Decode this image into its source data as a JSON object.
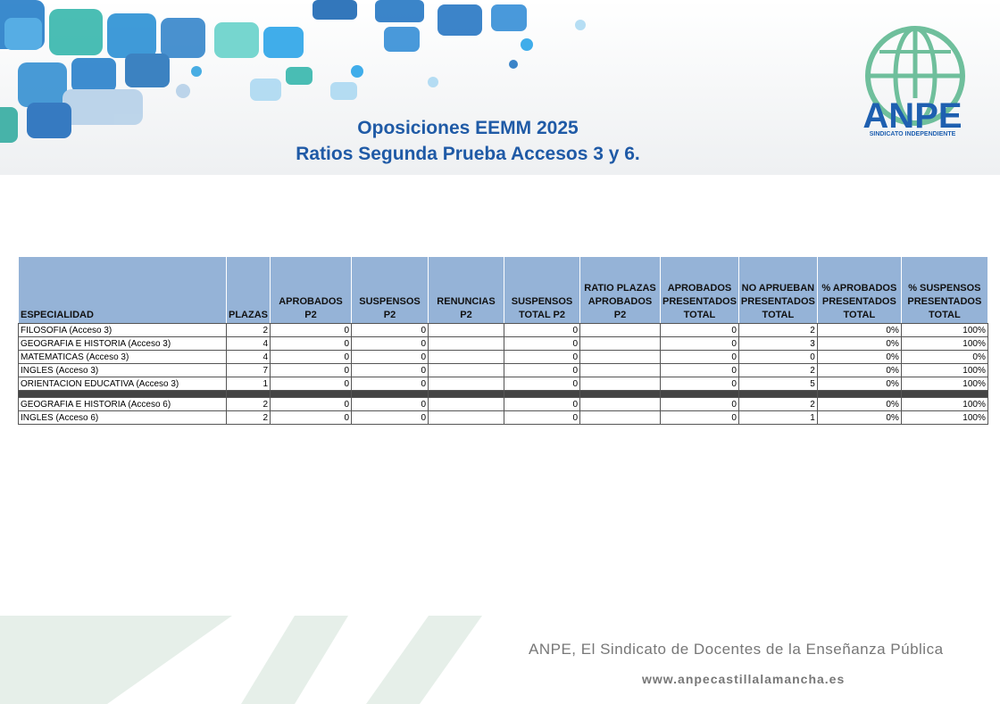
{
  "header": {
    "title": "Oposiciones EEMM 2025",
    "subtitle": "Ratios Segunda Prueba Accesos 3 y 6.",
    "logo": {
      "name": "ANPE",
      "tagline": "SINDICATO INDEPENDIENTE"
    }
  },
  "table": {
    "columns": [
      "ESPECIALIDAD",
      "PLAZAS",
      "APROBADOS P2",
      "SUSPENSOS P2",
      "RENUNCIAS P2",
      "SUSPENSOS TOTAL P2",
      "RATIO PLAZAS APROBADOS P2",
      "APROBADOS PRESENTADOS TOTAL",
      "NO APRUEBAN PRESENTADOS TOTAL",
      "% APROBADOS PRESENTADOS TOTAL",
      "% SUSPENSOS PRESENTADOS TOTAL"
    ],
    "groups": [
      {
        "rows": [
          [
            "FILOSOFIA (Acceso 3)",
            "2",
            "0",
            "0",
            null,
            "0",
            null,
            "0",
            "2",
            "0%",
            "100%"
          ],
          [
            "GEOGRAFIA E HISTORIA (Acceso 3)",
            "4",
            "0",
            "0",
            null,
            "0",
            null,
            "0",
            "3",
            "0%",
            "100%"
          ],
          [
            "MATEMATICAS (Acceso 3)",
            "4",
            "0",
            "0",
            null,
            "0",
            null,
            "0",
            "0",
            "0%",
            "0%"
          ],
          [
            "INGLES (Acceso 3)",
            "7",
            "0",
            "0",
            null,
            "0",
            null,
            "0",
            "2",
            "0%",
            "100%"
          ],
          [
            "ORIENTACION EDUCATIVA (Acceso 3)",
            "1",
            "0",
            "0",
            null,
            "0",
            null,
            "0",
            "5",
            "0%",
            "100%"
          ]
        ]
      },
      {
        "rows": [
          [
            "GEOGRAFIA E HISTORIA (Acceso 6)",
            "2",
            "0",
            "0",
            null,
            "0",
            null,
            "0",
            "2",
            "0%",
            "100%"
          ],
          [
            "INGLES (Acceso 6)",
            "2",
            "0",
            "0",
            null,
            "0",
            null,
            "0",
            "1",
            "0%",
            "100%"
          ]
        ]
      }
    ]
  },
  "footer": {
    "slogan": "ANPE, El Sindicato de Docentes de la Enseñanza Pública",
    "url": "www.anpecastillalamancha.es"
  }
}
